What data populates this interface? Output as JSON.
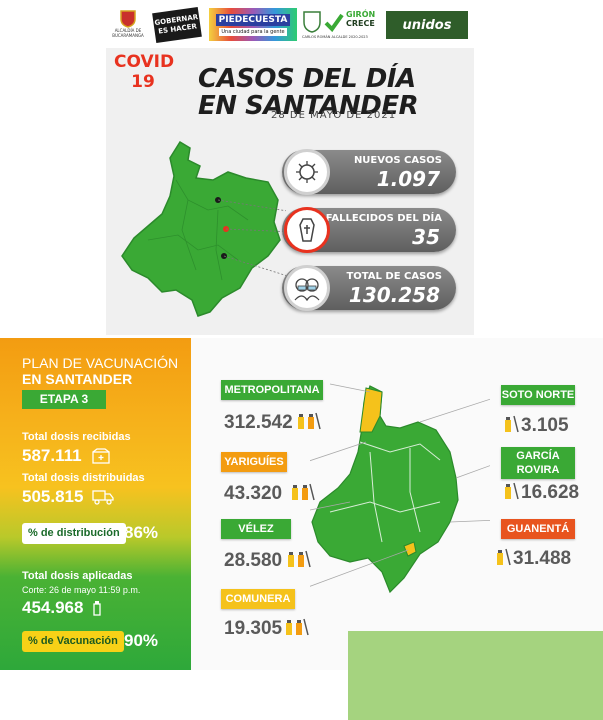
{
  "header": {
    "logos": [
      {
        "name": "gobernacion-santander-logo",
        "lines": [
          "ALCALDÍA DE",
          "BUCARAMANGA"
        ]
      },
      {
        "name": "gobernar-es-hacer-logo",
        "lines": [
          "GOBERNAR",
          "ES HACER"
        ]
      },
      {
        "name": "piedecuesta-logo",
        "lines": [
          "PIEDECUESTA",
          "Una ciudad para la gente"
        ]
      },
      {
        "name": "giron-crece-logo",
        "lines": [
          "GIRÓN",
          "CRECE",
          "CARLOS ROMÁN ALCALDE 2020-2023"
        ]
      },
      {
        "name": "unidos-logo",
        "lines": [
          "unidos"
        ]
      }
    ]
  },
  "covid": {
    "tag_line1": "COVID",
    "tag_line2": "19",
    "title_line1": "CASOS DEL DÍA",
    "title_line2": "EN SANTANDER",
    "date": "28 DE MAYO DE 2021",
    "stats": [
      {
        "label": "NUEVOS CASOS",
        "value": "1.097",
        "icon": "virus-icon"
      },
      {
        "label": "FALLECIDOS DEL DÍA",
        "value": "35",
        "icon": "coffin-icon"
      },
      {
        "label": "TOTAL DE CASOS",
        "value": "130.258",
        "icon": "masked-people-icon"
      }
    ],
    "colors": {
      "accent": "#e8321f",
      "map": "#3aa935"
    }
  },
  "vaccination": {
    "title_line1": "PLAN DE VACUNACIÓN",
    "title_line2": "EN SANTANDER",
    "stage": "ETAPA 3",
    "received_label": "Total dosis recibidas",
    "received_value": "587.111",
    "distributed_label": "Total dosis distribuidas",
    "distributed_value": "505.815",
    "distribution_pct_label": "% de distribución",
    "distribution_pct_value": "86%",
    "applied_label": "Total dosis aplicadas",
    "applied_cut": "Corte: 26 de mayo 11:59 p.m.",
    "applied_value": "454.968",
    "vaccination_pct_label": "% de Vacunación",
    "vaccination_pct_value": "90%",
    "regions": [
      {
        "name": "METROPOLITANA",
        "value": "312.542",
        "color": "#3aa935"
      },
      {
        "name": "YARIGUÍES",
        "value": "43.320",
        "color": "#f39c11"
      },
      {
        "name": "VÉLEZ",
        "value": "28.580",
        "color": "#3aa935"
      },
      {
        "name": "COMUNERA",
        "value": "19.305",
        "color": "#f5c21b"
      },
      {
        "name": "SOTO NORTE",
        "value": "3.105",
        "color": "#3aa935"
      },
      {
        "name": "GARCÍA ROVIRA",
        "value": "16.628",
        "color": "#3aa935"
      },
      {
        "name": "GUANENTÁ",
        "value": "31.488",
        "color": "#e8541f"
      }
    ]
  }
}
